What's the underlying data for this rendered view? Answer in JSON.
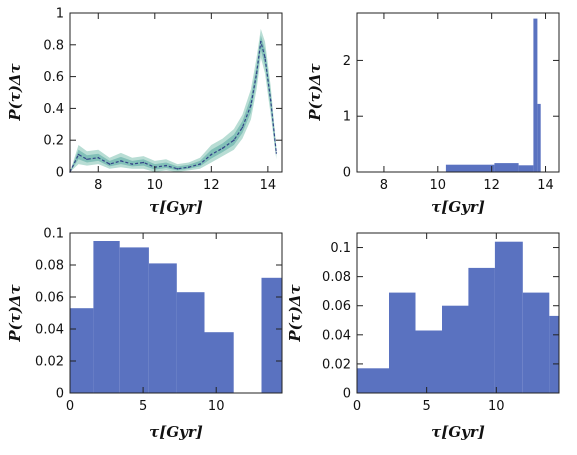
{
  "chart_data": [
    {
      "type": "line",
      "xlabel": "τ[Gyr]",
      "ylabel": "P(τ)Δτ",
      "xlim": [
        7,
        14.5
      ],
      "ylim": [
        0,
        1
      ],
      "xticks": [
        8,
        10,
        12,
        14
      ],
      "yticks": [
        0,
        0.2,
        0.4,
        0.6,
        0.8,
        1
      ],
      "ytick_labels": [
        "0",
        "0.2",
        "0.4",
        "0.6",
        "0.8",
        "1"
      ],
      "band_color": "#b8ddd4",
      "inner_band_color": "#82c0b8",
      "line_color": "#334488",
      "x": [
        7.0,
        7.3,
        7.6,
        8.0,
        8.4,
        8.8,
        9.2,
        9.6,
        10.0,
        10.4,
        10.8,
        11.2,
        11.6,
        12.0,
        12.4,
        12.8,
        13.1,
        13.4,
        13.6,
        13.75,
        13.9,
        14.1,
        14.3
      ],
      "y": [
        0.0,
        0.11,
        0.08,
        0.09,
        0.05,
        0.07,
        0.05,
        0.06,
        0.03,
        0.04,
        0.02,
        0.03,
        0.05,
        0.11,
        0.15,
        0.2,
        0.28,
        0.42,
        0.62,
        0.82,
        0.72,
        0.45,
        0.12
      ],
      "y_low": [
        0.0,
        0.05,
        0.04,
        0.05,
        0.02,
        0.03,
        0.02,
        0.02,
        0.0,
        0.01,
        0.0,
        0.01,
        0.02,
        0.06,
        0.1,
        0.14,
        0.21,
        0.33,
        0.52,
        0.72,
        0.62,
        0.36,
        0.08
      ],
      "y_high": [
        0.0,
        0.17,
        0.13,
        0.14,
        0.09,
        0.12,
        0.09,
        0.1,
        0.07,
        0.08,
        0.05,
        0.06,
        0.09,
        0.17,
        0.21,
        0.27,
        0.36,
        0.52,
        0.72,
        0.9,
        0.82,
        0.54,
        0.16
      ]
    },
    {
      "type": "bar",
      "xlabel": "τ[Gyr]",
      "ylabel": "P(τ)Δτ",
      "xlim": [
        7,
        14.5
      ],
      "ylim": [
        0,
        2.85
      ],
      "xticks": [
        8,
        10,
        12,
        14
      ],
      "yticks": [
        0,
        1,
        2
      ],
      "ytick_labels": [
        "0",
        "1",
        "2"
      ],
      "color": "#5a72c0",
      "bin_edges": [
        10.3,
        12.1,
        13.0,
        13.55,
        13.7,
        13.82
      ],
      "values": [
        0.13,
        0.16,
        0.12,
        2.75,
        1.22
      ]
    },
    {
      "type": "bar",
      "xlabel": "τ[Gyr]",
      "ylabel": "P(τ)Δτ",
      "xlim": [
        0,
        14.5
      ],
      "ylim": [
        0,
        0.1
      ],
      "xticks": [
        0,
        5,
        10
      ],
      "yticks": [
        0,
        0.02,
        0.04,
        0.06,
        0.08,
        0.1
      ],
      "ytick_labels": [
        "0",
        "0.02",
        "0.04",
        "0.06",
        "0.08",
        "0.1"
      ],
      "color": "#5a72c0",
      "bin_edges": [
        0,
        1.6,
        3.4,
        5.4,
        7.3,
        9.2,
        11.2,
        13.1,
        14.5
      ],
      "values": [
        0.053,
        0.095,
        0.091,
        0.081,
        0.063,
        0.038,
        0,
        0.072
      ]
    },
    {
      "type": "bar",
      "xlabel": "τ[Gyr]",
      "ylabel": "P(τ)Δτ",
      "xlim": [
        0,
        14.5
      ],
      "ylim": [
        0,
        0.11
      ],
      "xticks": [
        0,
        5,
        10
      ],
      "yticks": [
        0,
        0.02,
        0.04,
        0.06,
        0.08,
        0.1
      ],
      "ytick_labels": [
        "0",
        "0.02",
        "0.04",
        "0.06",
        "0.08",
        "0.1"
      ],
      "color": "#5a72c0",
      "bin_edges": [
        0,
        2.3,
        4.2,
        6.1,
        8.0,
        9.9,
        11.9,
        13.8,
        14.5
      ],
      "values": [
        0.017,
        0.069,
        0.043,
        0.06,
        0.086,
        0.104,
        0.069,
        0.053
      ]
    }
  ]
}
